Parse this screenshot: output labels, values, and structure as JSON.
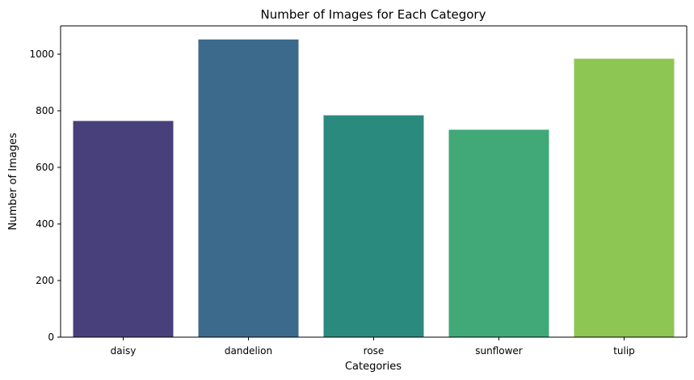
{
  "chart_data": {
    "type": "bar",
    "title": "Number of Images for Each Category",
    "xlabel": "Categories",
    "ylabel": "Number of Images",
    "categories": [
      "daisy",
      "dandelion",
      "rose",
      "sunflower",
      "tulip"
    ],
    "values": [
      764,
      1052,
      784,
      733,
      984
    ],
    "colors": [
      "#48407a",
      "#3b6a8c",
      "#2b8a7e",
      "#41a878",
      "#8dc653"
    ],
    "ylim": [
      0,
      1100
    ],
    "yticks": [
      0,
      200,
      400,
      600,
      800,
      1000
    ],
    "grid": false
  }
}
